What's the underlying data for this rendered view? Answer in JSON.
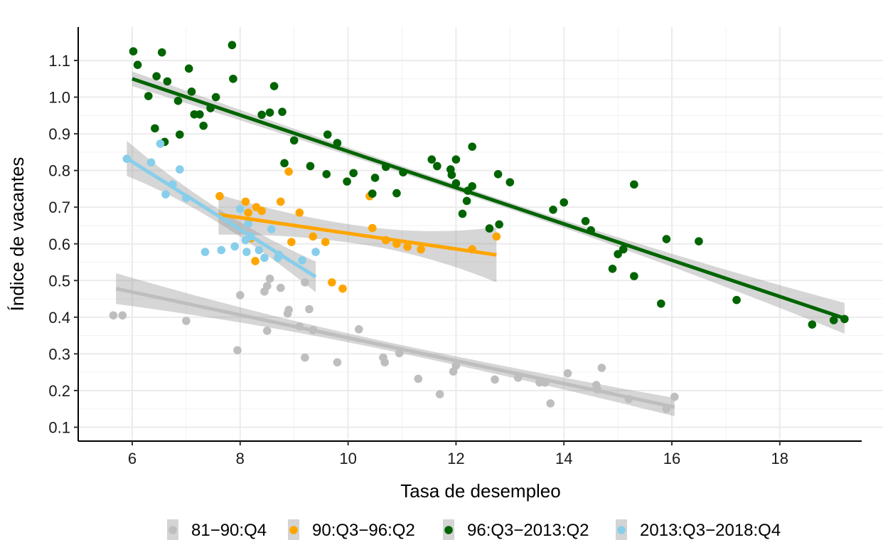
{
  "chart_data": {
    "type": "scatter",
    "title": "",
    "xlabel": "Tasa de desempleo",
    "ylabel": "Índice de vacantes",
    "xlim": [
      5.05,
      19.6
    ],
    "ylim": [
      0.055,
      1.19
    ],
    "xticks": [
      6,
      8,
      10,
      12,
      14,
      16,
      18
    ],
    "xtick_labels": [
      "6",
      "8",
      "10",
      "12",
      "14",
      "16",
      "18"
    ],
    "yticks": [
      0.1,
      0.2,
      0.3,
      0.4,
      0.5,
      0.6,
      0.7,
      0.8,
      0.9,
      1.0,
      1.1
    ],
    "ytick_labels": [
      "0.1",
      "0.2",
      "0.3",
      "0.4",
      "0.5",
      "0.6",
      "0.7",
      "0.8",
      "0.9",
      "1.0",
      "1.1"
    ],
    "grid": true,
    "legend_position": "bottom",
    "series": [
      {
        "name": "81−90:Q4",
        "color": "#bebebe",
        "points": [
          [
            5.65,
            0.405
          ],
          [
            5.82,
            0.405
          ],
          [
            7.0,
            0.39
          ],
          [
            7.95,
            0.31
          ],
          [
            8.0,
            0.46
          ],
          [
            8.45,
            0.47
          ],
          [
            8.5,
            0.485
          ],
          [
            8.55,
            0.505
          ],
          [
            8.5,
            0.363
          ],
          [
            8.75,
            0.48
          ],
          [
            8.88,
            0.41
          ],
          [
            8.9,
            0.42
          ],
          [
            9.1,
            0.375
          ],
          [
            9.2,
            0.495
          ],
          [
            9.2,
            0.29
          ],
          [
            9.28,
            0.422
          ],
          [
            9.35,
            0.365
          ],
          [
            9.8,
            0.277
          ],
          [
            10.2,
            0.367
          ],
          [
            10.65,
            0.29
          ],
          [
            10.68,
            0.277
          ],
          [
            10.95,
            0.302
          ],
          [
            11.3,
            0.232
          ],
          [
            11.7,
            0.19
          ],
          [
            11.95,
            0.252
          ],
          [
            12.0,
            0.268
          ],
          [
            12.72,
            0.23
          ],
          [
            13.15,
            0.235
          ],
          [
            13.55,
            0.222
          ],
          [
            13.65,
            0.222
          ],
          [
            13.75,
            0.165
          ],
          [
            14.07,
            0.247
          ],
          [
            14.6,
            0.215
          ],
          [
            14.62,
            0.203
          ],
          [
            14.7,
            0.262
          ],
          [
            15.2,
            0.177
          ],
          [
            15.9,
            0.15
          ],
          [
            16.05,
            0.183
          ]
        ],
        "fit": [
          [
            5.7,
            0.478
          ],
          [
            16.05,
            0.155
          ]
        ],
        "ci_halfwidth": [
          0.042,
          0.025
        ]
      },
      {
        "name": "90:Q3−96:Q2",
        "color": "#ffa500",
        "points": [
          [
            7.62,
            0.73
          ],
          [
            8.1,
            0.715
          ],
          [
            8.15,
            0.685
          ],
          [
            8.2,
            0.615
          ],
          [
            8.28,
            0.553
          ],
          [
            8.3,
            0.7
          ],
          [
            8.4,
            0.69
          ],
          [
            8.75,
            0.715
          ],
          [
            8.9,
            0.797
          ],
          [
            8.95,
            0.605
          ],
          [
            9.1,
            0.685
          ],
          [
            9.35,
            0.62
          ],
          [
            9.58,
            0.605
          ],
          [
            9.7,
            0.495
          ],
          [
            9.9,
            0.478
          ],
          [
            10.4,
            0.73
          ],
          [
            10.45,
            0.643
          ],
          [
            10.7,
            0.61
          ],
          [
            10.9,
            0.6
          ],
          [
            11.1,
            0.592
          ],
          [
            11.35,
            0.585
          ],
          [
            12.3,
            0.585
          ],
          [
            12.75,
            0.62
          ]
        ],
        "fit": [
          [
            7.6,
            0.68
          ],
          [
            12.75,
            0.57
          ]
        ],
        "ci_halfwidth": [
          0.055,
          0.075
        ]
      },
      {
        "name": "96:Q3−2013:Q2",
        "color": "#006400",
        "points": [
          [
            6.02,
            1.125
          ],
          [
            6.1,
            1.088
          ],
          [
            6.3,
            1.003
          ],
          [
            6.42,
            0.915
          ],
          [
            6.45,
            1.057
          ],
          [
            6.55,
            1.122
          ],
          [
            6.6,
            0.878
          ],
          [
            6.65,
            1.043
          ],
          [
            6.85,
            0.99
          ],
          [
            6.88,
            0.898
          ],
          [
            7.05,
            1.078
          ],
          [
            7.1,
            1.015
          ],
          [
            7.15,
            0.953
          ],
          [
            7.25,
            0.953
          ],
          [
            7.32,
            0.922
          ],
          [
            7.45,
            0.97
          ],
          [
            7.55,
            1.0
          ],
          [
            7.85,
            1.142
          ],
          [
            7.87,
            1.05
          ],
          [
            8.4,
            0.952
          ],
          [
            8.55,
            0.958
          ],
          [
            8.63,
            1.03
          ],
          [
            8.78,
            0.96
          ],
          [
            8.82,
            0.82
          ],
          [
            9.0,
            0.882
          ],
          [
            9.3,
            0.812
          ],
          [
            9.6,
            0.79
          ],
          [
            9.62,
            0.898
          ],
          [
            9.8,
            0.875
          ],
          [
            9.98,
            0.77
          ],
          [
            10.1,
            0.793
          ],
          [
            10.45,
            0.737
          ],
          [
            10.5,
            0.78
          ],
          [
            10.7,
            0.81
          ],
          [
            10.9,
            0.738
          ],
          [
            11.02,
            0.795
          ],
          [
            11.55,
            0.83
          ],
          [
            11.65,
            0.812
          ],
          [
            11.9,
            0.803
          ],
          [
            11.92,
            0.788
          ],
          [
            12.0,
            0.765
          ],
          [
            12.0,
            0.83
          ],
          [
            12.12,
            0.682
          ],
          [
            12.2,
            0.717
          ],
          [
            12.22,
            0.745
          ],
          [
            12.3,
            0.757
          ],
          [
            12.3,
            0.865
          ],
          [
            12.62,
            0.642
          ],
          [
            12.78,
            0.79
          ],
          [
            12.8,
            0.653
          ],
          [
            13.0,
            0.768
          ],
          [
            13.8,
            0.693
          ],
          [
            14.0,
            0.713
          ],
          [
            14.4,
            0.662
          ],
          [
            14.5,
            0.637
          ],
          [
            14.9,
            0.532
          ],
          [
            15.0,
            0.572
          ],
          [
            15.1,
            0.585
          ],
          [
            15.3,
            0.762
          ],
          [
            15.3,
            0.512
          ],
          [
            15.8,
            0.437
          ],
          [
            15.9,
            0.613
          ],
          [
            16.5,
            0.607
          ],
          [
            17.2,
            0.447
          ],
          [
            18.6,
            0.38
          ],
          [
            19.0,
            0.392
          ],
          [
            19.2,
            0.395
          ]
        ],
        "fit": [
          [
            6.0,
            1.05
          ],
          [
            19.2,
            0.397
          ]
        ],
        "ci_halfwidth": [
          0.02,
          0.042
        ]
      },
      {
        "name": "2013:Q3−2018:Q4",
        "color": "#87ceeb",
        "points": [
          [
            5.9,
            0.832
          ],
          [
            6.35,
            0.822
          ],
          [
            6.52,
            0.873
          ],
          [
            6.62,
            0.735
          ],
          [
            6.75,
            0.762
          ],
          [
            6.88,
            0.803
          ],
          [
            7.0,
            0.725
          ],
          [
            7.35,
            0.578
          ],
          [
            7.65,
            0.583
          ],
          [
            7.9,
            0.593
          ],
          [
            8.0,
            0.695
          ],
          [
            8.1,
            0.61
          ],
          [
            8.12,
            0.578
          ],
          [
            8.15,
            0.655
          ],
          [
            8.2,
            0.62
          ],
          [
            8.35,
            0.583
          ],
          [
            8.45,
            0.562
          ],
          [
            8.58,
            0.64
          ],
          [
            8.7,
            0.562
          ],
          [
            8.72,
            0.57
          ],
          [
            9.15,
            0.555
          ],
          [
            9.4,
            0.578
          ]
        ],
        "fit": [
          [
            5.9,
            0.833
          ],
          [
            9.4,
            0.51
          ]
        ],
        "ci_halfwidth": [
          0.048,
          0.042
        ]
      }
    ]
  }
}
